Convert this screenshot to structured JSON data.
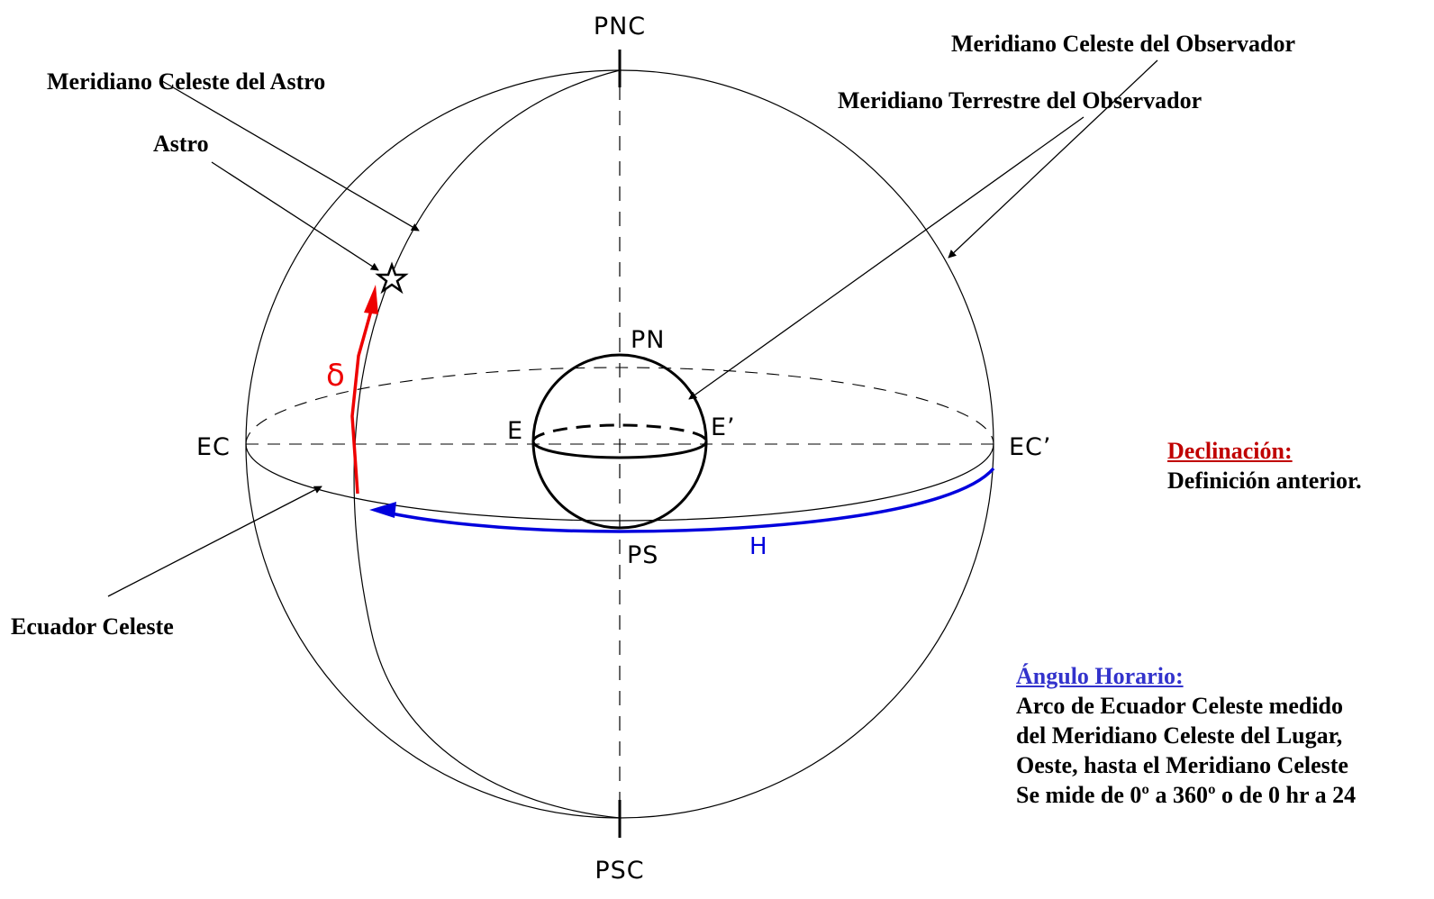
{
  "labels": {
    "pnc": "PNC",
    "psc": "PSC",
    "ec_left": "EC",
    "ec_right": "EC’",
    "pn": "PN",
    "ps": "PS",
    "e_left": "E",
    "e_right": "E’",
    "delta": "δ",
    "h": "H",
    "meridiano_astro": "Meridiano Celeste del Astro",
    "astro": "Astro",
    "meridiano_celeste_obs": "Meridiano Celeste del Observador",
    "meridiano_terrestre_obs": "Meridiano Terrestre del Observador",
    "ecuador_celeste": "Ecuador Celeste"
  },
  "declinacion": {
    "heading": "Declinación:",
    "text": "Definición anterior.",
    "color": "#c00000"
  },
  "angulo_horario": {
    "heading": "Ángulo Horario:",
    "color": "#3333cc",
    "lines": [
      "Arco de Ecuador Celeste medido",
      "del Meridiano Celeste del Lugar,",
      "Oeste, hasta el Meridiano Celeste",
      "Se mide de 0º a 360º o de 0 hr a 24"
    ]
  },
  "colors": {
    "line": "#000000",
    "declination_arc": "#ee0000",
    "hour_angle_arc": "#0000dd"
  },
  "icons": {
    "astro": "star-icon"
  }
}
